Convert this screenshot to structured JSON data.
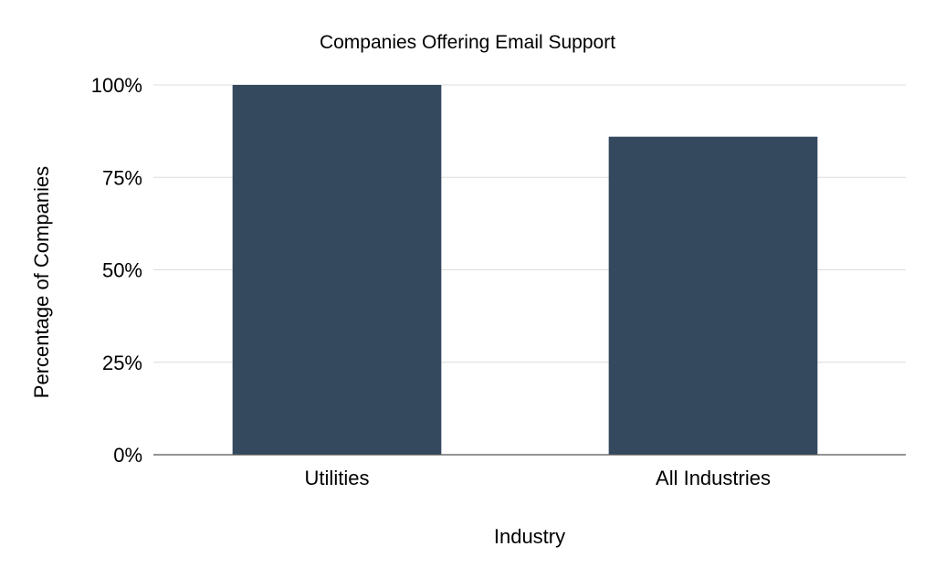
{
  "chart_data": {
    "type": "bar",
    "title": "Companies Offering Email Support",
    "xlabel": "Industry",
    "ylabel": "Percentage of Companies",
    "categories": [
      "Utilities",
      "All Industries"
    ],
    "values": [
      100,
      86
    ],
    "ylim": [
      0,
      100
    ],
    "yticks": [
      0,
      25,
      50,
      75,
      100
    ],
    "ytick_labels": [
      "0%",
      "25%",
      "50%",
      "75%",
      "100%"
    ],
    "grid": true,
    "legend": "none",
    "bar_color": "#34495e"
  }
}
